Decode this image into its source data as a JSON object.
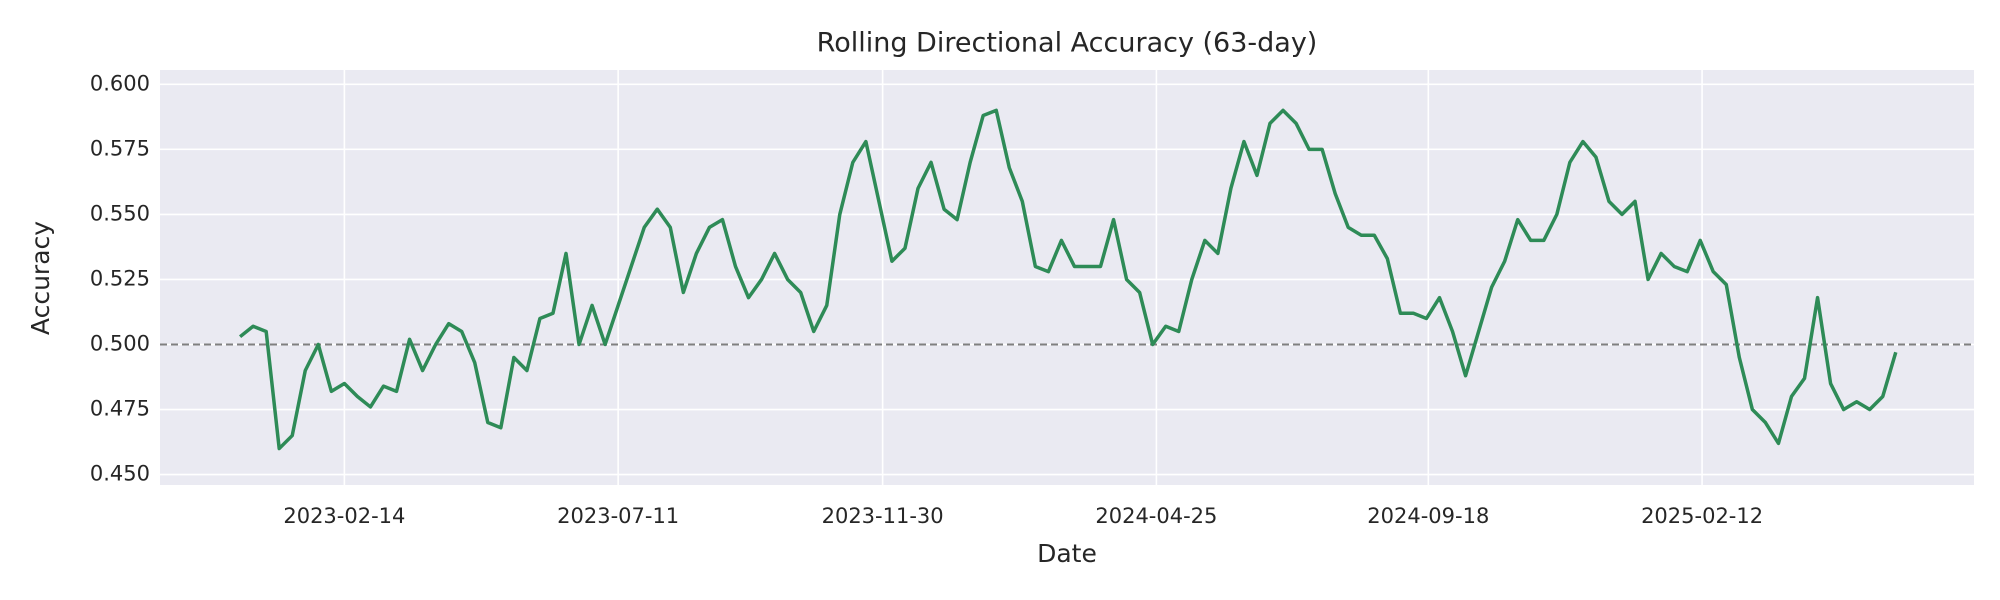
{
  "chart_data": {
    "type": "line",
    "title": "Rolling Directional Accuracy (63-day)",
    "xlabel": "Date",
    "ylabel": "Accuracy",
    "x": [
      "2022-12-20",
      "2022-12-27",
      "2023-01-03",
      "2023-01-10",
      "2023-01-17",
      "2023-01-24",
      "2023-01-31",
      "2023-02-07",
      "2023-02-14",
      "2023-02-21",
      "2023-02-28",
      "2023-03-07",
      "2023-03-14",
      "2023-03-21",
      "2023-03-28",
      "2023-04-04",
      "2023-04-11",
      "2023-04-18",
      "2023-04-25",
      "2023-05-02",
      "2023-05-09",
      "2023-05-16",
      "2023-05-23",
      "2023-05-30",
      "2023-06-06",
      "2023-06-13",
      "2023-06-20",
      "2023-06-27",
      "2023-07-04",
      "2023-07-11",
      "2023-07-18",
      "2023-07-25",
      "2023-08-01",
      "2023-08-08",
      "2023-08-15",
      "2023-08-22",
      "2023-08-29",
      "2023-09-05",
      "2023-09-12",
      "2023-09-19",
      "2023-09-26",
      "2023-10-03",
      "2023-10-10",
      "2023-10-17",
      "2023-10-24",
      "2023-10-31",
      "2023-11-07",
      "2023-11-14",
      "2023-11-21",
      "2023-11-28",
      "2023-12-05",
      "2023-12-12",
      "2023-12-19",
      "2023-12-26",
      "2024-01-02",
      "2024-01-09",
      "2024-01-16",
      "2024-01-23",
      "2024-01-30",
      "2024-02-06",
      "2024-02-13",
      "2024-02-20",
      "2024-02-27",
      "2024-03-05",
      "2024-03-12",
      "2024-03-19",
      "2024-03-26",
      "2024-04-02",
      "2024-04-09",
      "2024-04-16",
      "2024-04-23",
      "2024-04-30",
      "2024-05-07",
      "2024-05-14",
      "2024-05-21",
      "2024-05-28",
      "2024-06-04",
      "2024-06-11",
      "2024-06-18",
      "2024-06-25",
      "2024-07-02",
      "2024-07-09",
      "2024-07-16",
      "2024-07-23",
      "2024-07-30",
      "2024-08-06",
      "2024-08-13",
      "2024-08-20",
      "2024-08-27",
      "2024-09-03",
      "2024-09-10",
      "2024-09-17",
      "2024-09-24",
      "2024-10-01",
      "2024-10-08",
      "2024-10-15",
      "2024-10-22",
      "2024-10-29",
      "2024-11-05",
      "2024-11-12",
      "2024-11-19",
      "2024-11-26",
      "2024-12-03",
      "2024-12-10",
      "2024-12-17",
      "2024-12-24",
      "2024-12-31",
      "2025-01-07",
      "2025-01-14",
      "2025-01-21",
      "2025-01-28",
      "2025-02-04",
      "2025-02-11",
      "2025-02-18",
      "2025-02-25",
      "2025-03-04",
      "2025-03-11",
      "2025-03-18",
      "2025-03-25",
      "2025-04-01",
      "2025-04-08",
      "2025-04-15",
      "2025-04-22",
      "2025-04-29",
      "2025-05-06",
      "2025-05-13",
      "2025-05-20",
      "2025-05-27"
    ],
    "series": [
      {
        "color": "#2e8b57",
        "values": [
          0.503,
          0.507,
          0.505,
          0.46,
          0.465,
          0.49,
          0.5,
          0.482,
          0.485,
          0.48,
          0.476,
          0.484,
          0.482,
          0.502,
          0.49,
          0.5,
          0.508,
          0.505,
          0.493,
          0.47,
          0.468,
          0.495,
          0.49,
          0.51,
          0.512,
          0.535,
          0.5,
          0.515,
          0.5,
          0.515,
          0.53,
          0.545,
          0.552,
          0.545,
          0.52,
          0.535,
          0.545,
          0.548,
          0.53,
          0.518,
          0.525,
          0.535,
          0.525,
          0.52,
          0.505,
          0.515,
          0.55,
          0.57,
          0.578,
          0.555,
          0.532,
          0.537,
          0.56,
          0.57,
          0.552,
          0.548,
          0.57,
          0.588,
          0.59,
          0.568,
          0.555,
          0.53,
          0.528,
          0.54,
          0.53,
          0.53,
          0.53,
          0.548,
          0.525,
          0.52,
          0.5,
          0.507,
          0.505,
          0.525,
          0.54,
          0.535,
          0.56,
          0.578,
          0.565,
          0.585,
          0.59,
          0.585,
          0.575,
          0.575,
          0.558,
          0.545,
          0.542,
          0.542,
          0.533,
          0.512,
          0.512,
          0.51,
          0.518,
          0.505,
          0.488,
          0.505,
          0.522,
          0.532,
          0.548,
          0.54,
          0.54,
          0.55,
          0.57,
          0.578,
          0.572,
          0.555,
          0.55,
          0.555,
          0.525,
          0.535,
          0.53,
          0.528,
          0.54,
          0.528,
          0.523,
          0.495,
          0.475,
          0.47,
          0.462,
          0.48,
          0.487,
          0.518,
          0.485,
          0.475,
          0.478,
          0.475,
          0.48,
          0.497
        ]
      }
    ],
    "xlim": [
      "2022-11-07",
      "2025-07-08"
    ],
    "xticks": [
      "2023-02-14",
      "2023-07-11",
      "2023-11-30",
      "2024-04-25",
      "2024-09-18",
      "2025-02-12"
    ],
    "ylim": [
      0.446,
      0.6055
    ],
    "yticks": [
      {
        "value": 0.45,
        "label": "0.450"
      },
      0.475,
      {
        "value": 0.5,
        "label": "0.500"
      },
      0.525,
      {
        "value": 0.55,
        "label": "0.550"
      },
      0.575,
      {
        "value": 0.6,
        "label": "0.600"
      }
    ],
    "hline": 0.5,
    "hline_color": "#808080",
    "grid": true,
    "background": "#eaeaf2"
  }
}
